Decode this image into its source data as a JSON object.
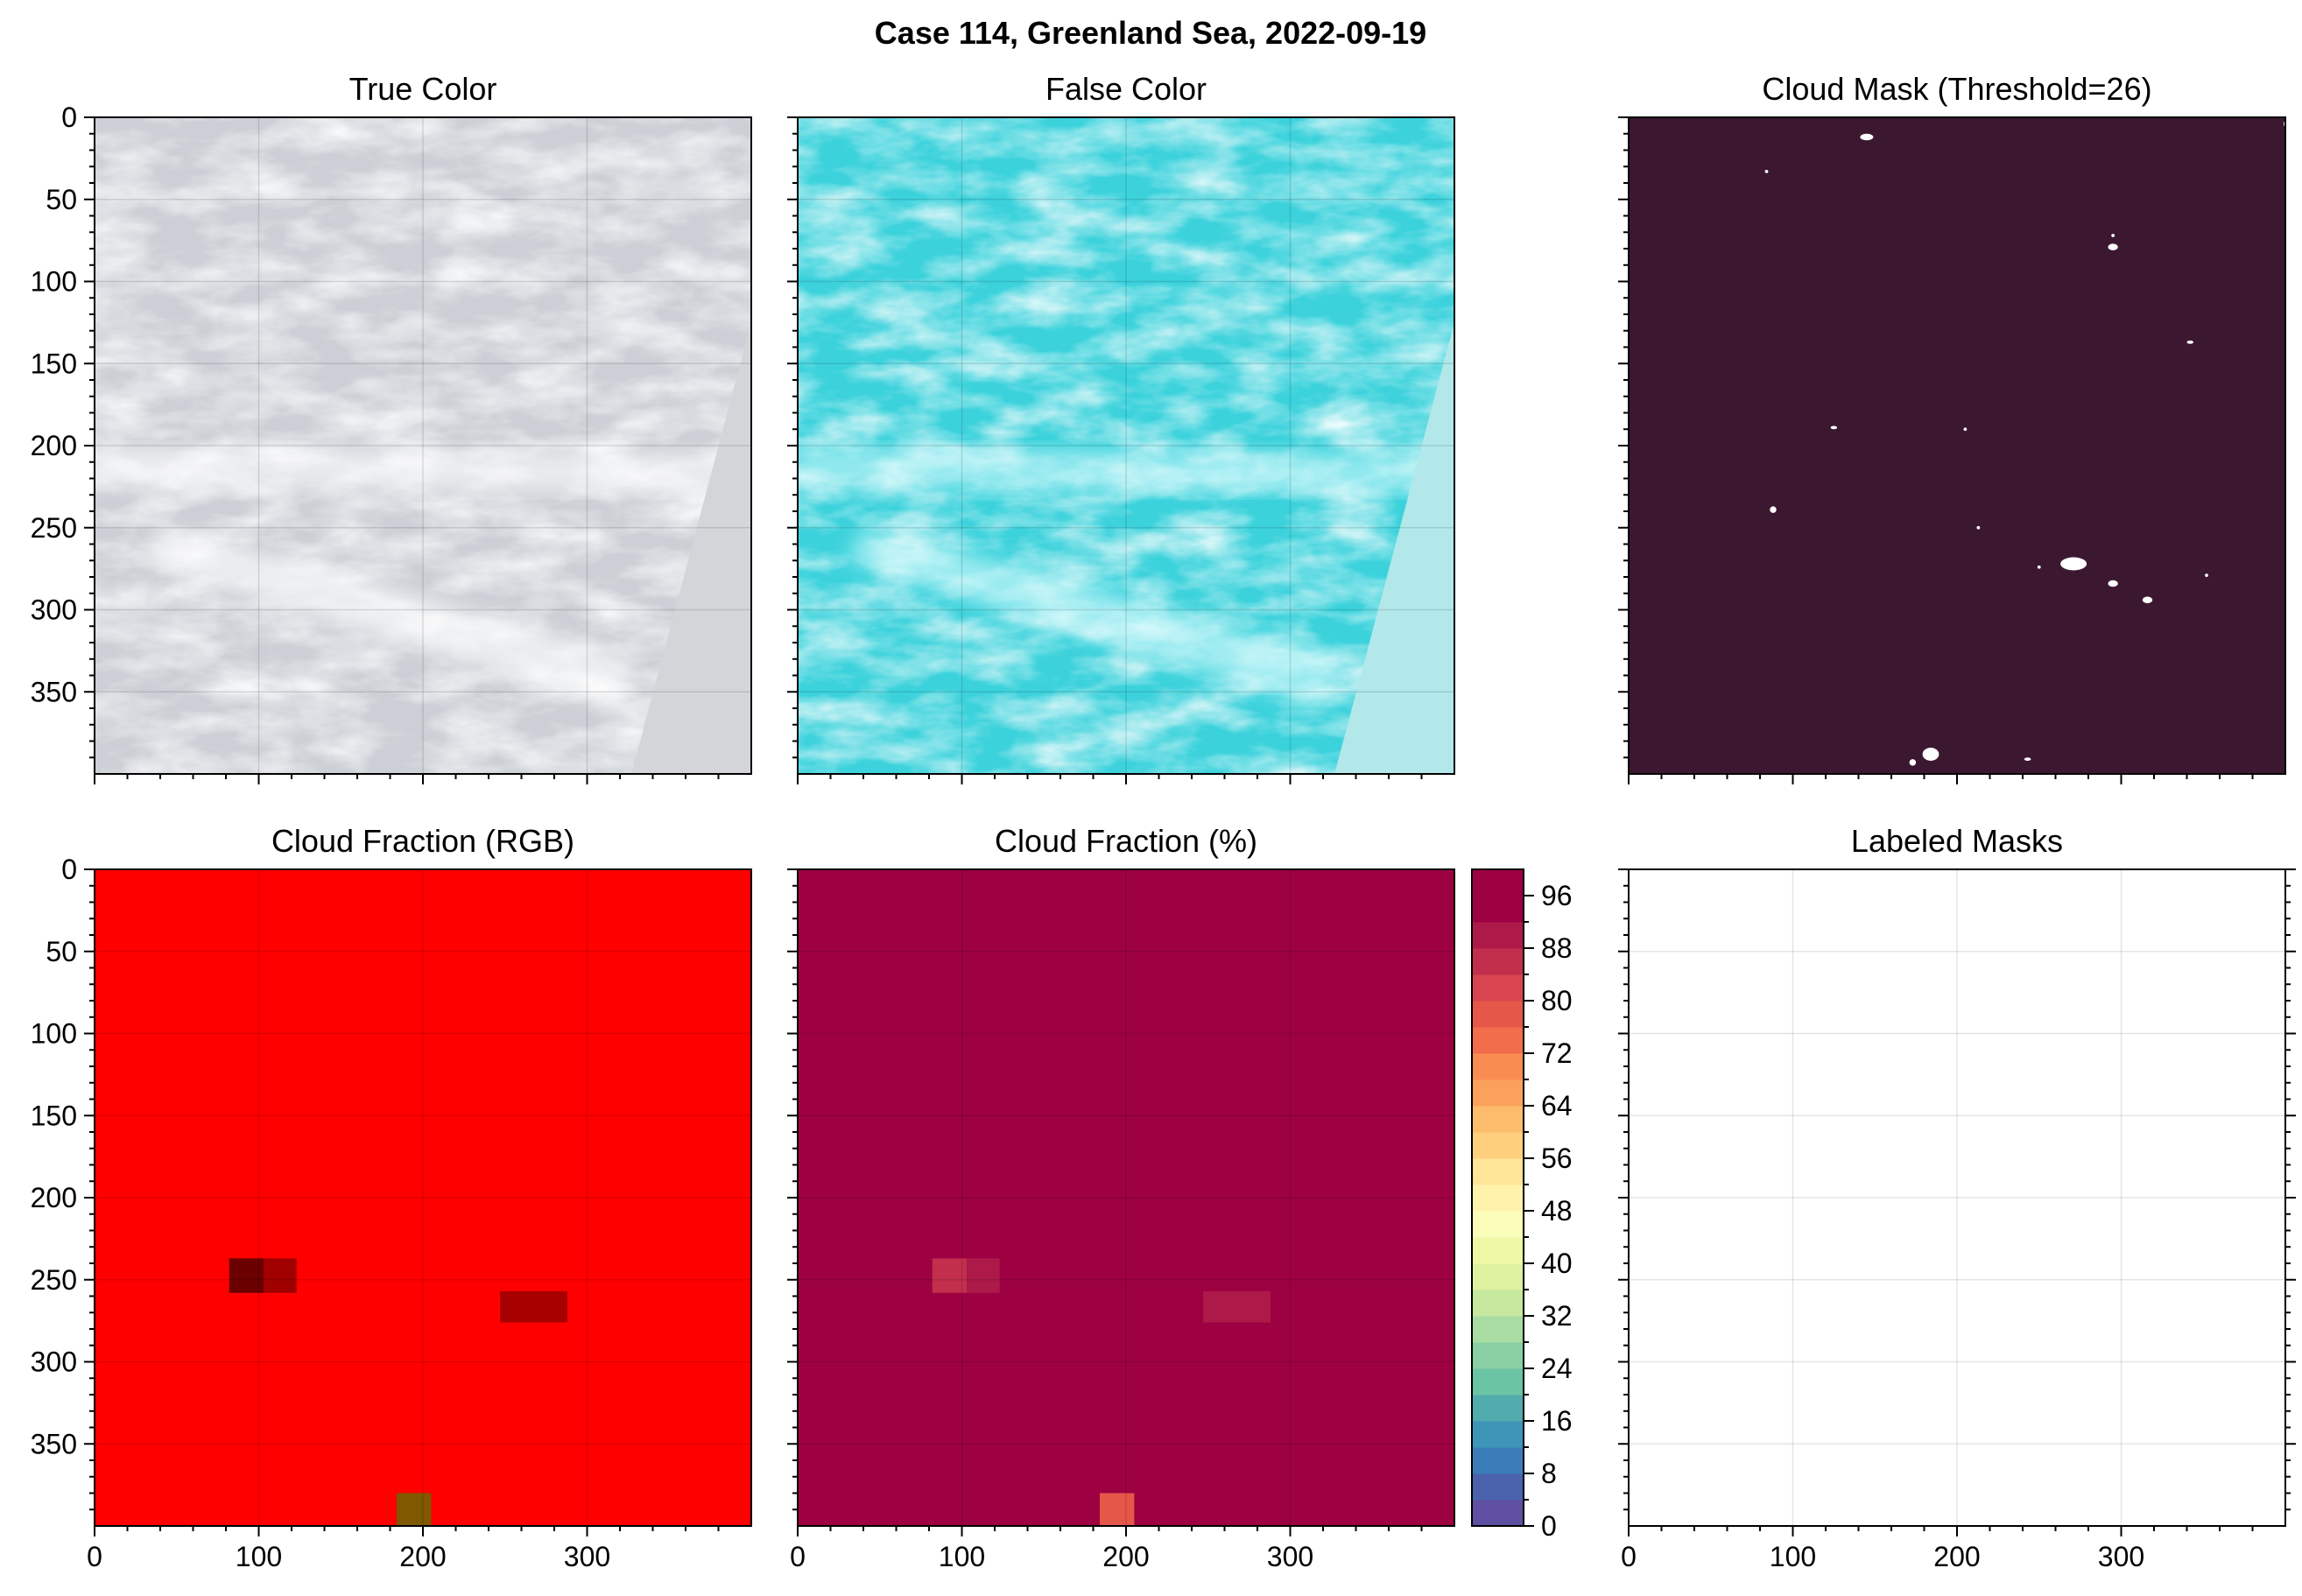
{
  "figure": {
    "suptitle": "Case 114, Greenland Sea, 2022-09-19"
  },
  "chart_data": [
    {
      "type": "image",
      "title": "True Color",
      "xlim": [
        0,
        400
      ],
      "ylim": [
        400,
        0
      ],
      "x_ticks": [
        0,
        100,
        200,
        300
      ],
      "y_ticks": [
        0,
        50,
        100,
        150,
        200,
        250,
        300,
        350
      ],
      "show_x_labels": false,
      "show_y_labels": true,
      "grid": true,
      "colors": {
        "base": "#ccd0d6",
        "bright": "#ffffff",
        "swath_edge": "#d3d5d8"
      }
    },
    {
      "type": "image",
      "title": "False Color",
      "xlim": [
        0,
        400
      ],
      "ylim": [
        400,
        0
      ],
      "x_ticks": [
        0,
        100,
        200,
        300
      ],
      "y_ticks": [
        0,
        50,
        100,
        150,
        200,
        250,
        300,
        350
      ],
      "show_x_labels": false,
      "show_y_labels": false,
      "grid": true,
      "colors": {
        "base": "#3cd2dc",
        "bright": "#d6fbfd",
        "swath_edge": "#b2e8ea"
      }
    },
    {
      "type": "image",
      "title": "Cloud Mask (Threshold=26)",
      "xlim": [
        0,
        400
      ],
      "ylim": [
        400,
        0
      ],
      "x_ticks": [
        0,
        100,
        200,
        300
      ],
      "y_ticks": [
        0,
        50,
        100,
        150,
        200,
        250,
        300,
        350
      ],
      "show_x_labels": false,
      "show_y_labels": false,
      "grid": false,
      "colors": {
        "background": "#3c1830",
        "mask": "#ffffff"
      },
      "mask_blobs": [
        {
          "x": 145,
          "y": 12,
          "rx": 4,
          "ry": 2
        },
        {
          "x": 402,
          "y": 4,
          "rx": 3,
          "ry": 3
        },
        {
          "x": 84,
          "y": 33,
          "rx": 1,
          "ry": 1
        },
        {
          "x": 295,
          "y": 72,
          "rx": 1,
          "ry": 1
        },
        {
          "x": 295,
          "y": 79,
          "rx": 3,
          "ry": 2
        },
        {
          "x": 342,
          "y": 137,
          "rx": 2,
          "ry": 1
        },
        {
          "x": 125,
          "y": 189,
          "rx": 2,
          "ry": 1
        },
        {
          "x": 205,
          "y": 190,
          "rx": 1,
          "ry": 1
        },
        {
          "x": 88,
          "y": 239,
          "rx": 2,
          "ry": 2
        },
        {
          "x": 213,
          "y": 250,
          "rx": 1,
          "ry": 1
        },
        {
          "x": 271,
          "y": 272,
          "rx": 8,
          "ry": 4
        },
        {
          "x": 250,
          "y": 274,
          "rx": 1,
          "ry": 1
        },
        {
          "x": 295,
          "y": 284,
          "rx": 3,
          "ry": 2
        },
        {
          "x": 316,
          "y": 294,
          "rx": 3,
          "ry": 2
        },
        {
          "x": 352,
          "y": 279,
          "rx": 1,
          "ry": 1
        },
        {
          "x": 184,
          "y": 388,
          "rx": 5,
          "ry": 4
        },
        {
          "x": 173,
          "y": 393,
          "rx": 2,
          "ry": 2
        },
        {
          "x": 243,
          "y": 391,
          "rx": 2,
          "ry": 1
        }
      ]
    },
    {
      "type": "heatmap",
      "title": "Cloud Fraction (RGB)",
      "xlim": [
        0,
        400
      ],
      "ylim": [
        400,
        0
      ],
      "x_ticks": [
        0,
        100,
        200,
        300
      ],
      "y_ticks": [
        0,
        50,
        100,
        150,
        200,
        250,
        300,
        350
      ],
      "show_x_labels": true,
      "show_y_labels": true,
      "grid": true,
      "colors": {
        "background": "#ff0000"
      },
      "cells": [
        {
          "x": 82,
          "y": 237,
          "w": 21,
          "h": 21,
          "color": "#6b0000"
        },
        {
          "x": 103,
          "y": 237,
          "w": 20,
          "h": 21,
          "color": "#a00000"
        },
        {
          "x": 247,
          "y": 257,
          "w": 41,
          "h": 19,
          "color": "#a80000"
        },
        {
          "x": 184,
          "y": 380,
          "w": 21,
          "h": 20,
          "color": "#7f5800"
        }
      ]
    },
    {
      "type": "heatmap",
      "title": "Cloud Fraction (%)",
      "xlim": [
        0,
        400
      ],
      "ylim": [
        400,
        0
      ],
      "x_ticks": [
        0,
        100,
        200,
        300
      ],
      "y_ticks": [
        0,
        50,
        100,
        150,
        200,
        250,
        300,
        350
      ],
      "show_x_labels": true,
      "show_y_labels": false,
      "grid": true,
      "colors": {
        "background": "#9e0142"
      },
      "cells": [
        {
          "x": 82,
          "y": 237,
          "w": 21,
          "h": 21,
          "value": 86
        },
        {
          "x": 103,
          "y": 237,
          "w": 20,
          "h": 21,
          "value": 89
        },
        {
          "x": 247,
          "y": 257,
          "w": 41,
          "h": 19,
          "value": 91
        },
        {
          "x": 184,
          "y": 380,
          "w": 21,
          "h": 20,
          "value": 78
        }
      ],
      "colorbar": {
        "min": 0,
        "max": 100,
        "step": 4,
        "ticks": [
          0,
          8,
          16,
          24,
          32,
          40,
          48,
          56,
          64,
          72,
          80,
          88,
          96
        ],
        "colors": [
          "#5e4fa2",
          "#4a62ac",
          "#3a7db8",
          "#3d95b8",
          "#52abad",
          "#6bc4a4",
          "#89d0a4",
          "#a8dca2",
          "#c6e89f",
          "#def2a0",
          "#eff8a6",
          "#fbfdbb",
          "#fff3ab",
          "#fee597",
          "#fed07e",
          "#fdbb6c",
          "#fca15b",
          "#f88d52",
          "#f26d4b",
          "#e55749",
          "#d84550",
          "#c22f4c",
          "#ad1a49",
          "#9e0142",
          "#9e0142"
        ]
      }
    },
    {
      "type": "image",
      "title": "Labeled Masks",
      "xlim": [
        0,
        400
      ],
      "ylim": [
        400,
        0
      ],
      "x_ticks": [
        0,
        100,
        200,
        300
      ],
      "y_ticks": [
        0,
        50,
        100,
        150,
        200,
        250,
        300,
        350
      ],
      "show_x_labels": true,
      "show_y_labels": false,
      "y_ticks_right": true,
      "grid": true,
      "colors": {
        "background": "#ffffff"
      }
    }
  ]
}
